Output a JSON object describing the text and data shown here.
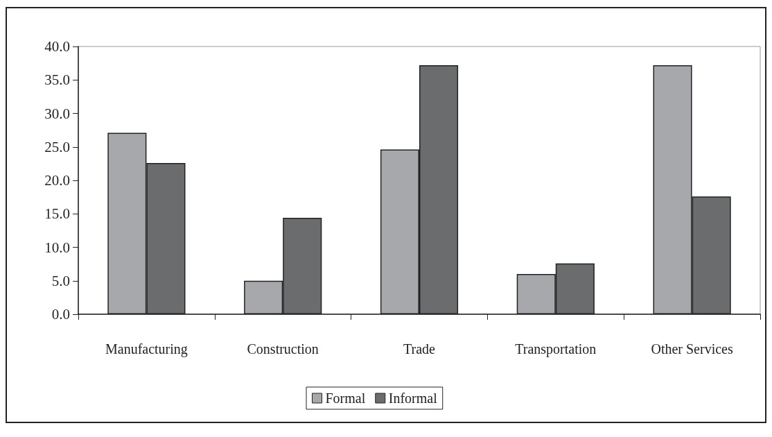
{
  "chart_data": {
    "type": "bar",
    "categories": [
      "Manufacturing",
      "Construction",
      "Trade",
      "Transportation",
      "Other Services"
    ],
    "series": [
      {
        "name": "Formal",
        "color": "#a7a8ab",
        "values": [
          27.1,
          5.0,
          24.6,
          6.0,
          37.2
        ]
      },
      {
        "name": "Informal",
        "color": "#6b6c6e",
        "values": [
          22.6,
          14.4,
          37.2,
          7.6,
          17.6
        ]
      }
    ],
    "ylim": [
      0,
      40
    ],
    "yticks": [
      {
        "value": 0,
        "label": "0.0"
      },
      {
        "value": 5,
        "label": "5.0"
      },
      {
        "value": 10,
        "label": "10.0"
      },
      {
        "value": 15,
        "label": "15.0"
      },
      {
        "value": 20,
        "label": "20.0"
      },
      {
        "value": 25,
        "label": "25.0"
      },
      {
        "value": 30,
        "label": "30.0"
      },
      {
        "value": 35,
        "label": "35.0"
      },
      {
        "value": 40,
        "label": "40.0"
      }
    ],
    "grid": false,
    "legend": "bottom"
  }
}
